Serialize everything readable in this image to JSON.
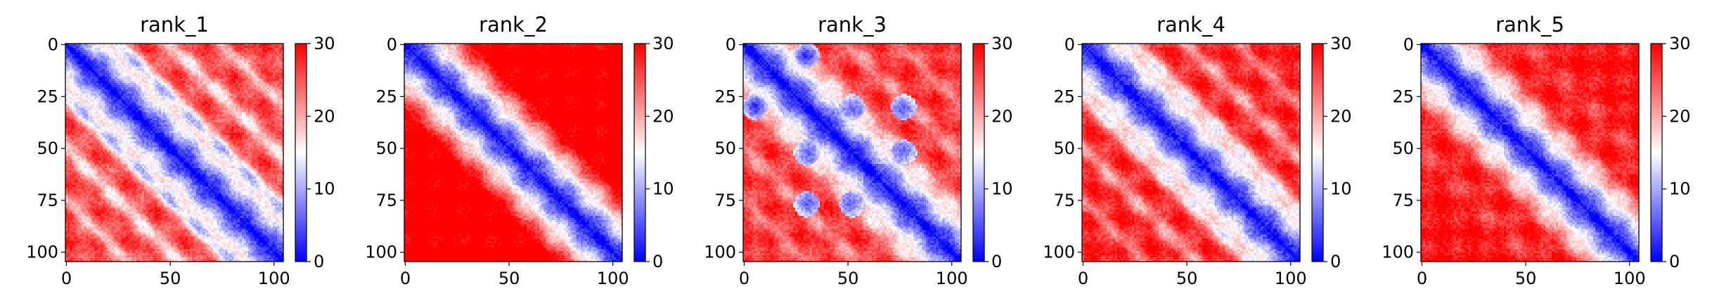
{
  "chart_data": [
    {
      "type": "heatmap",
      "title": "rank_1",
      "matrix_size": 105,
      "xticks": [
        "0",
        "50",
        "100"
      ],
      "yticks": [
        "0",
        "25",
        "50",
        "75",
        "100"
      ],
      "colorbar": {
        "vmin": 0,
        "vmax": 30,
        "ticks": [
          "0",
          "10",
          "20",
          "30"
        ],
        "cmap": "bwr"
      },
      "pattern": {
        "diagonal_band_halfwidth": 6,
        "offdiag_bands": [
          {
            "offset": 25,
            "strength": 0.8,
            "width": 6
          },
          {
            "offset": 50,
            "strength": 0.55,
            "width": 6
          },
          {
            "offset": 75,
            "strength": 0.45,
            "width": 5
          }
        ],
        "background_level": 22,
        "blobs": []
      }
    },
    {
      "type": "heatmap",
      "title": "rank_2",
      "matrix_size": 105,
      "xticks": [
        "0",
        "50",
        "100"
      ],
      "yticks": [
        "0",
        "25",
        "50",
        "75",
        "100"
      ],
      "colorbar": {
        "vmin": 0,
        "vmax": 30,
        "ticks": [
          "0",
          "10",
          "20",
          "30"
        ],
        "cmap": "bwr"
      },
      "pattern": {
        "diagonal_band_halfwidth": 6,
        "offdiag_bands": [],
        "background_level": 28,
        "blobs": []
      }
    },
    {
      "type": "heatmap",
      "title": "rank_3",
      "matrix_size": 105,
      "xticks": [
        "0",
        "50",
        "100"
      ],
      "yticks": [
        "0",
        "25",
        "50",
        "75",
        "100"
      ],
      "colorbar": {
        "vmin": 0,
        "vmax": 30,
        "ticks": [
          "0",
          "10",
          "20",
          "30"
        ],
        "cmap": "bwr"
      },
      "pattern": {
        "diagonal_band_halfwidth": 6,
        "offdiag_bands": [
          {
            "offset": 25,
            "strength": 0.35,
            "width": 7
          },
          {
            "offset": 50,
            "strength": 0.3,
            "width": 6
          },
          {
            "offset": 75,
            "strength": 0.25,
            "width": 5
          }
        ],
        "background_level": 23,
        "blobs": [
          [
            5,
            30
          ],
          [
            30,
            5
          ],
          [
            30,
            52
          ],
          [
            52,
            30
          ],
          [
            52,
            77
          ],
          [
            77,
            52
          ],
          [
            30,
            77
          ],
          [
            77,
            30
          ]
        ]
      }
    },
    {
      "type": "heatmap",
      "title": "rank_4",
      "matrix_size": 105,
      "xticks": [
        "0",
        "50",
        "100"
      ],
      "yticks": [
        "0",
        "25",
        "50",
        "75",
        "100"
      ],
      "colorbar": {
        "vmin": 0,
        "vmax": 30,
        "ticks": [
          "0",
          "10",
          "20",
          "30"
        ],
        "cmap": "bwr"
      },
      "pattern": {
        "diagonal_band_halfwidth": 6,
        "offdiag_bands": [
          {
            "offset": 25,
            "strength": 0.55,
            "width": 6
          },
          {
            "offset": 50,
            "strength": 0.4,
            "width": 6
          },
          {
            "offset": 75,
            "strength": 0.3,
            "width": 5
          }
        ],
        "background_level": 24,
        "blobs": []
      }
    },
    {
      "type": "heatmap",
      "title": "rank_5",
      "matrix_size": 105,
      "xticks": [
        "0",
        "50",
        "100"
      ],
      "yticks": [
        "0",
        "25",
        "50",
        "75",
        "100"
      ],
      "colorbar": {
        "vmin": 0,
        "vmax": 30,
        "ticks": [
          "0",
          "10",
          "20",
          "30"
        ],
        "cmap": "bwr"
      },
      "pattern": {
        "diagonal_band_halfwidth": 6,
        "offdiag_bands": [
          {
            "offset": 25,
            "strength": 0.2,
            "width": 8
          },
          {
            "offset": 50,
            "strength": 0.15,
            "width": 8
          }
        ],
        "background_level": 25,
        "blobs": []
      }
    }
  ]
}
